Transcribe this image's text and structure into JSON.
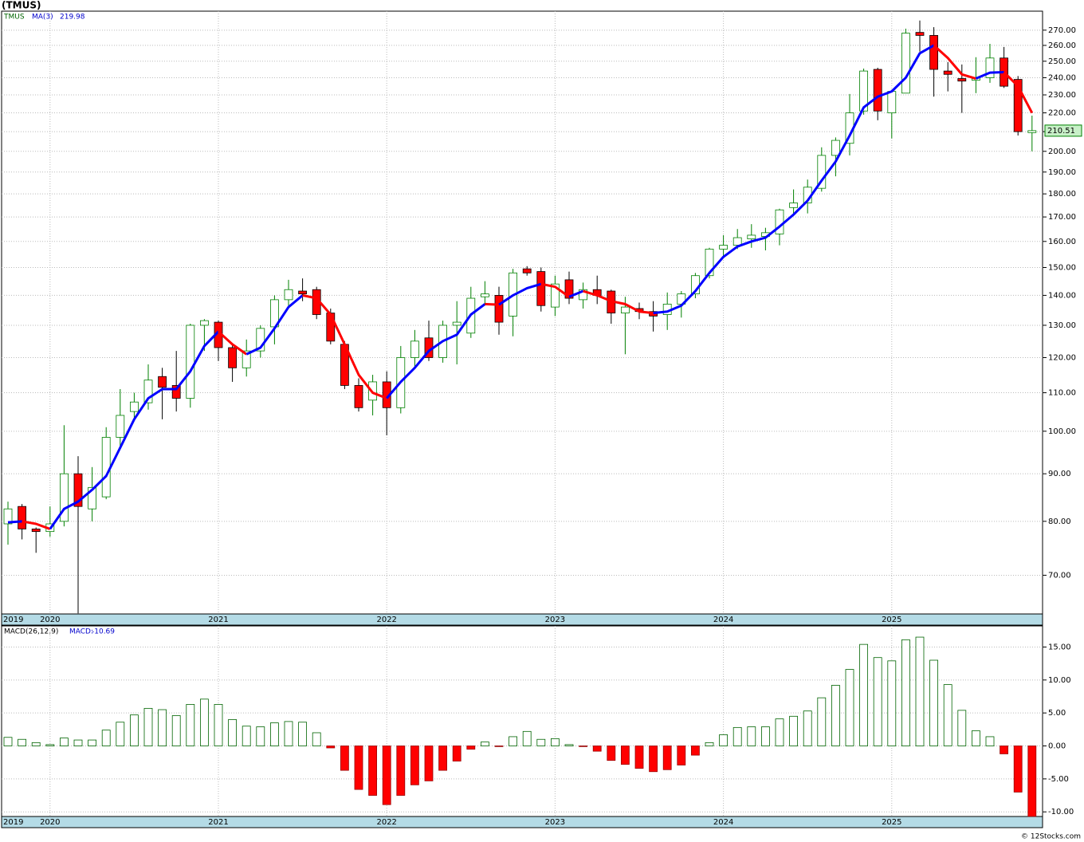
{
  "chart_data": [
    {
      "type": "candlestick",
      "title": "(TMUS)",
      "ticker": "TMUS",
      "categories": [
        "2019",
        null,
        null,
        "2020",
        null,
        null,
        null,
        null,
        null,
        null,
        null,
        null,
        null,
        null,
        null,
        "2021",
        null,
        null,
        null,
        null,
        null,
        null,
        null,
        null,
        null,
        null,
        null,
        "2022",
        null,
        null,
        null,
        null,
        null,
        null,
        null,
        null,
        null,
        null,
        null,
        "2023",
        null,
        null,
        null,
        null,
        null,
        null,
        null,
        null,
        null,
        null,
        null,
        "2024",
        null,
        null,
        null,
        null,
        null,
        null,
        null,
        null,
        null,
        null,
        null,
        "2025",
        null,
        null,
        null,
        null,
        null,
        null,
        null,
        null,
        null,
        null
      ],
      "open": [
        79.5,
        83,
        78.5,
        78,
        80,
        90,
        82.5,
        85,
        98.5,
        105,
        107.3,
        114.5,
        112,
        108.5,
        130,
        131,
        123,
        117,
        122,
        129.5,
        138.5,
        141.5,
        142,
        134,
        124,
        112,
        108,
        113,
        106,
        120,
        126,
        120,
        130,
        127.5,
        139.5,
        140,
        133,
        149.5,
        148.5,
        136,
        145.5,
        138.5,
        142,
        141.5,
        134,
        135.5,
        134.5,
        133.5,
        137,
        140.5,
        147,
        157,
        158.5,
        161,
        162,
        163,
        174,
        176,
        182.5,
        198,
        204,
        221,
        245,
        220,
        231,
        268.5,
        266.5,
        244,
        239.5,
        238.5,
        240,
        252,
        239,
        209.5
      ],
      "high": [
        84,
        83.5,
        78.8,
        83,
        101.5,
        94,
        91.5,
        101,
        111,
        110,
        118,
        117,
        122,
        130.5,
        132,
        131.5,
        124,
        125.5,
        130,
        140,
        145.5,
        146,
        143,
        135.5,
        125,
        114,
        115,
        116,
        123.5,
        128.5,
        131.5,
        131.5,
        138,
        143,
        145,
        143,
        149.5,
        150.5,
        150,
        147,
        148.5,
        144.5,
        147,
        142,
        139.5,
        137.5,
        138,
        141,
        141.5,
        148,
        157.5,
        162.5,
        165,
        167,
        165.5,
        173.5,
        182,
        186.5,
        202,
        207,
        230.5,
        245.5,
        246,
        233,
        271,
        276.5,
        272,
        249.5,
        248,
        252.5,
        261,
        259,
        241,
        218.5
      ],
      "low": [
        75.5,
        76.5,
        74,
        77,
        79,
        63.7,
        80,
        84.5,
        96,
        103,
        105.5,
        103,
        105,
        106,
        122,
        119,
        113,
        114.5,
        120,
        124,
        136,
        138,
        132,
        124,
        111,
        105,
        104,
        99,
        104.5,
        117,
        119,
        118.5,
        118,
        126,
        136.5,
        127,
        126.5,
        147,
        134.5,
        133,
        137,
        135.5,
        137,
        130.5,
        121,
        132,
        128,
        128.5,
        132.5,
        139,
        146,
        154,
        157,
        157.5,
        156.5,
        158.5,
        171,
        171.5,
        181,
        188,
        198,
        219,
        216,
        206.5,
        231,
        256,
        229,
        232,
        220,
        231,
        237,
        234,
        208,
        200
      ],
      "close": [
        82.5,
        78.5,
        78,
        79.5,
        90,
        83,
        87,
        98.5,
        104,
        107.5,
        113.5,
        111.5,
        108.5,
        130,
        131.5,
        123,
        117,
        122,
        129,
        138.5,
        142,
        140.5,
        133.5,
        125,
        112,
        106,
        113,
        106,
        120,
        125,
        120,
        130,
        131,
        139,
        140.5,
        131,
        148,
        148,
        136.5,
        144,
        139,
        142,
        140,
        134,
        136,
        134.5,
        133,
        137,
        140.5,
        147,
        157,
        158.5,
        161.5,
        162.5,
        163.5,
        173,
        176,
        183,
        198,
        205.5,
        220,
        244,
        221,
        232,
        268,
        266.5,
        245,
        242,
        238,
        240,
        252,
        235,
        210,
        210.51
      ],
      "up_color": "#008000",
      "down_color": "#ff0000",
      "ma": {
        "name": "MA(3)",
        "up_color": "#0000ff",
        "down_color": "#ff0000",
        "values": [
          79.8,
          80,
          79.5,
          78.5,
          82.5,
          84,
          86.5,
          89.5,
          96,
          103,
          108.5,
          111,
          111,
          116,
          123.5,
          128,
          124,
          121,
          123,
          129,
          136,
          140,
          139,
          133.5,
          124,
          115,
          110,
          108.5,
          113,
          117,
          122,
          125,
          127,
          133.5,
          137,
          136.8,
          140,
          142.5,
          144,
          143,
          139.5,
          141.5,
          140,
          138,
          137,
          134.5,
          134,
          134.5,
          136.5,
          141.5,
          148,
          154,
          158,
          160,
          161.5,
          166,
          171,
          177,
          186,
          195,
          208,
          223,
          229,
          232,
          240,
          255,
          260,
          252,
          242,
          239.5,
          243,
          243.3,
          235,
          219.98
        ]
      },
      "log_scale": true,
      "grid": true,
      "ylim": [
        63.6,
        283
      ],
      "yticks": [
        {
          "value": 70,
          "label": "70.00"
        },
        {
          "value": 80,
          "label": "80.00"
        },
        {
          "value": 90,
          "label": "90.00"
        },
        {
          "value": 100,
          "label": "100.00"
        },
        {
          "value": 110,
          "label": "110.00"
        },
        {
          "value": 120,
          "label": "120.00"
        },
        {
          "value": 130,
          "label": "130.00"
        },
        {
          "value": 140,
          "label": "140.00"
        },
        {
          "value": 150,
          "label": "150.00"
        },
        {
          "value": 160,
          "label": "160.00"
        },
        {
          "value": 170,
          "label": "170.00"
        },
        {
          "value": 180,
          "label": "180.00"
        },
        {
          "value": 190,
          "label": "190.00"
        },
        {
          "value": 200,
          "label": "200.00"
        },
        {
          "value": 210,
          "label": "210.00"
        },
        {
          "value": 220,
          "label": "220.00"
        },
        {
          "value": 230,
          "label": "230.00"
        },
        {
          "value": 240,
          "label": "240.00"
        },
        {
          "value": 250,
          "label": "250.00"
        },
        {
          "value": 260,
          "label": "260.00"
        },
        {
          "value": 270,
          "label": "270.00"
        }
      ]
    },
    {
      "type": "bar",
      "title": "MACD(26,12,9)",
      "series": [
        {
          "name": "MACD:",
          "color": "#0000cc",
          "up_color": "#006400",
          "down_color": "#ff0000",
          "values": [
            1.3,
            1.0,
            0.5,
            0.2,
            1.2,
            0.9,
            0.9,
            2.4,
            3.6,
            4.7,
            5.7,
            5.5,
            4.6,
            6.3,
            7.1,
            6.3,
            4.0,
            3.0,
            2.9,
            3.5,
            3.7,
            3.6,
            2.0,
            -0.3,
            -3.7,
            -6.6,
            -7.5,
            -8.9,
            -7.5,
            -5.9,
            -5.3,
            -3.7,
            -2.3,
            -0.5,
            0.6,
            -0.1,
            1.4,
            2.2,
            1.0,
            1.1,
            0.2,
            -0.1,
            -0.8,
            -2.2,
            -2.8,
            -3.4,
            -3.9,
            -3.6,
            -2.9,
            -1.4,
            0.5,
            1.7,
            2.8,
            2.9,
            2.9,
            4.1,
            4.5,
            5.3,
            7.3,
            9.2,
            11.6,
            15.4,
            13.4,
            12.9,
            16.1,
            16.5,
            13.0,
            9.3,
            5.4,
            2.3,
            1.4,
            -1.2,
            -7.0,
            -10.69
          ]
        }
      ],
      "grid": true,
      "ylim": [
        -10.7,
        18.2
      ],
      "yticks": [
        {
          "value": -10,
          "label": "-10.00"
        },
        {
          "value": -5,
          "label": "-5.00"
        },
        {
          "value": 0,
          "label": "0.00"
        },
        {
          "value": 5,
          "label": "5.00"
        },
        {
          "value": 10,
          "label": "10.00"
        },
        {
          "value": 15,
          "label": "15.00"
        }
      ]
    }
  ],
  "footer": "© 12Stocks.com"
}
